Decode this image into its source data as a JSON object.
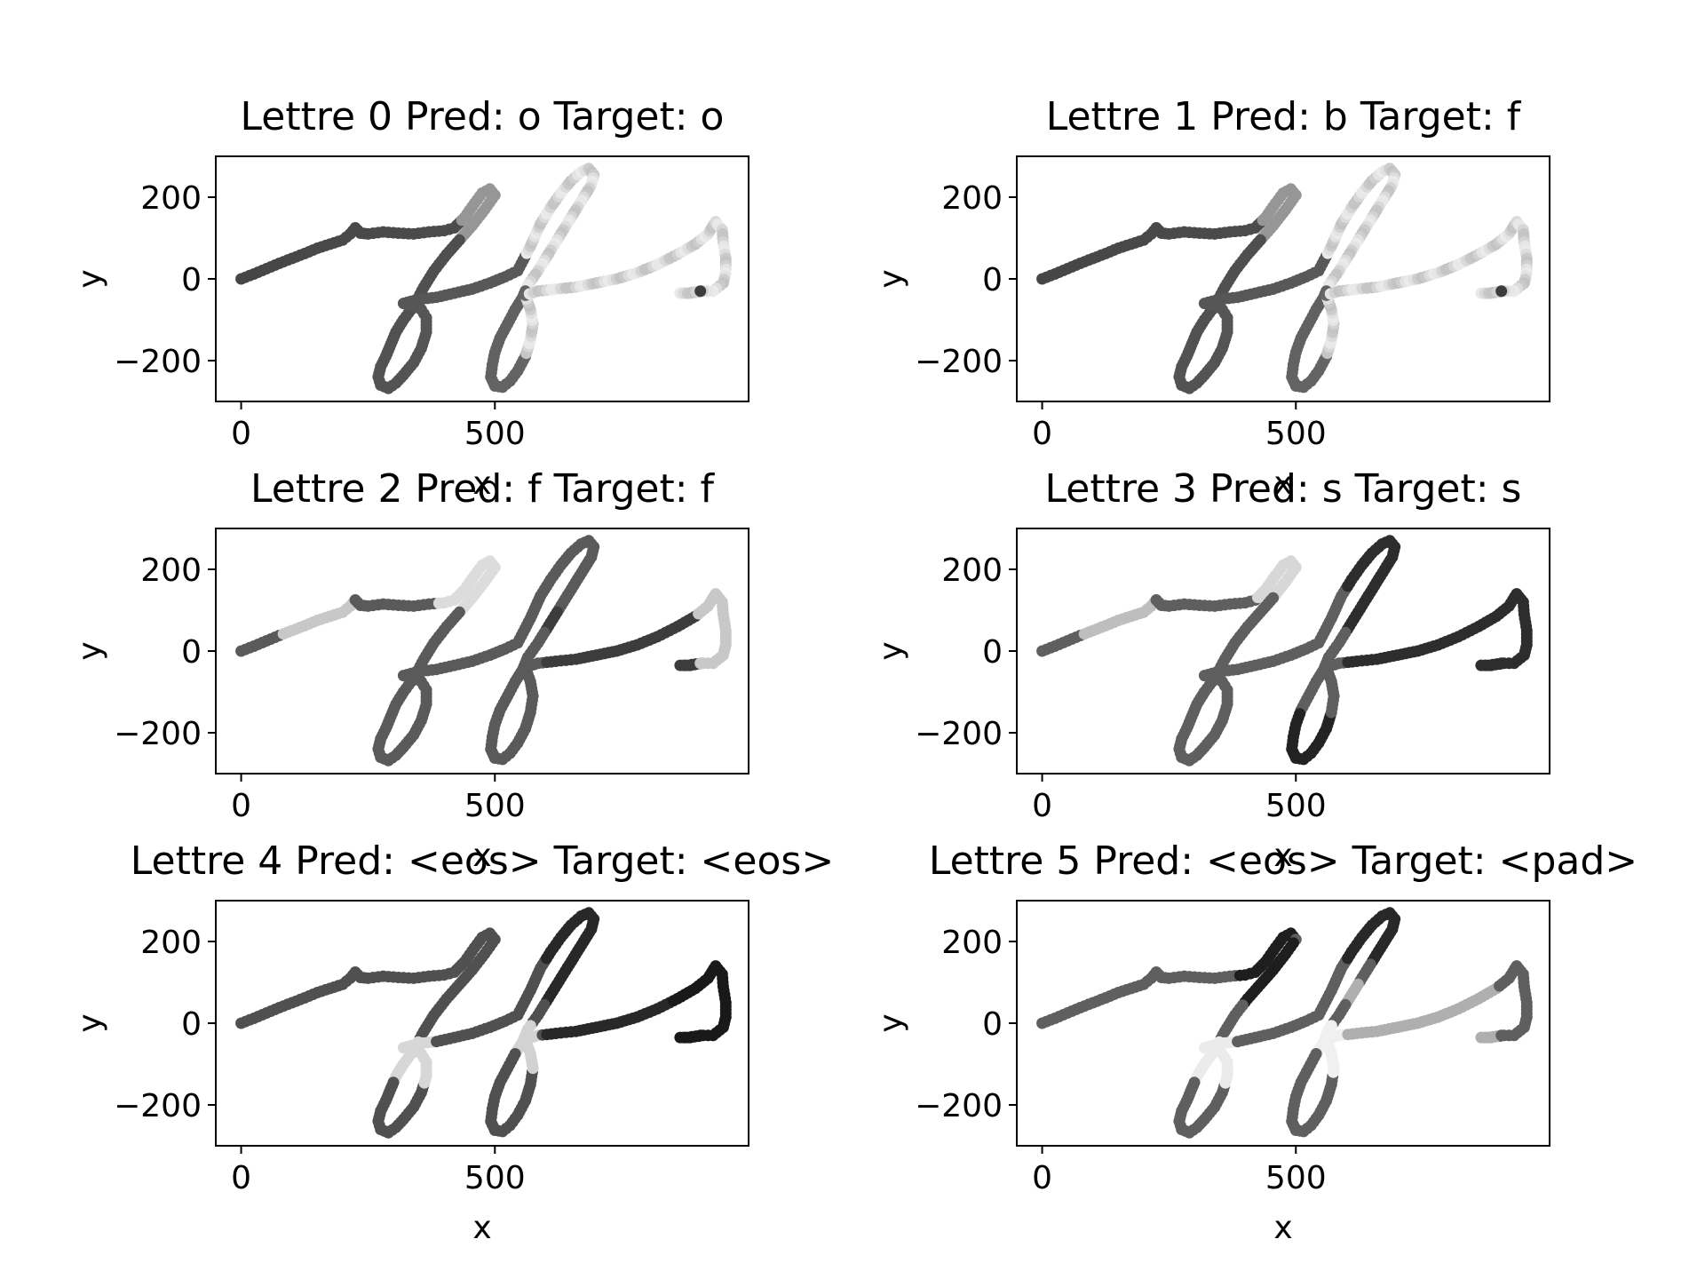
{
  "chart_data": [
    {
      "type": "scatter",
      "title": "Lettre 0 Pred: o Target: o",
      "xlabel": "x",
      "ylabel": "y",
      "xlim": [
        -50,
        1000
      ],
      "ylim": [
        -300,
        300
      ],
      "xticks": [
        "0",
        "500"
      ],
      "yticks": [
        "200",
        "0",
        "−200"
      ],
      "grid": false,
      "colormap": "grayscale",
      "shading_region": "end"
    },
    {
      "type": "scatter",
      "title": "Lettre 1 Pred: b Target: f",
      "xlabel": "x",
      "ylabel": "y",
      "xlim": [
        -50,
        1000
      ],
      "ylim": [
        -300,
        300
      ],
      "xticks": [
        "0",
        "500"
      ],
      "yticks": [
        "200",
        "0",
        "−200"
      ],
      "grid": false,
      "colormap": "grayscale",
      "shading_region": "end"
    },
    {
      "type": "scatter",
      "title": "Lettre 2 Pred: f Target: f",
      "xlabel": "x",
      "ylabel": "y",
      "xlim": [
        -50,
        1000
      ],
      "ylim": [
        -300,
        300
      ],
      "xticks": [
        "0",
        "500"
      ],
      "yticks": [
        "200",
        "0",
        "−200"
      ],
      "grid": false,
      "colormap": "grayscale",
      "shading_region": "first-f"
    },
    {
      "type": "scatter",
      "title": "Lettre 3 Pred: s Target: s",
      "xlabel": "x",
      "ylabel": "y",
      "xlim": [
        -50,
        1000
      ],
      "ylim": [
        -300,
        300
      ],
      "xticks": [
        "0",
        "500"
      ],
      "yticks": [
        "200",
        "0",
        "−200"
      ],
      "grid": false,
      "colormap": "grayscale",
      "shading_region": "second-f"
    },
    {
      "type": "scatter",
      "title": "Lettre 4 Pred: <eos> Target: <eos>",
      "xlabel": "x",
      "ylabel": "y",
      "xlim": [
        -50,
        1000
      ],
      "ylim": [
        -300,
        300
      ],
      "xticks": [
        "0",
        "500"
      ],
      "yticks": [
        "200",
        "0",
        "−200"
      ],
      "grid": false,
      "colormap": "grayscale",
      "shading_region": "loops"
    },
    {
      "type": "scatter",
      "title": "Lettre 5 Pred: <eos> Target: <pad>",
      "xlabel": "x",
      "ylabel": "y",
      "xlim": [
        -50,
        1000
      ],
      "ylim": [
        -300,
        300
      ],
      "xticks": [
        "0",
        "500"
      ],
      "yticks": [
        "200",
        "0",
        "−200"
      ],
      "grid": false,
      "colormap": "grayscale",
      "shading_region": "loops-light"
    }
  ],
  "trajectory": [
    [
      0,
      0
    ],
    [
      25,
      12
    ],
    [
      50,
      25
    ],
    [
      75,
      38
    ],
    [
      100,
      50
    ],
    [
      125,
      62
    ],
    [
      150,
      75
    ],
    [
      175,
      85
    ],
    [
      200,
      95
    ],
    [
      215,
      110
    ],
    [
      225,
      125
    ],
    [
      235,
      112
    ],
    [
      250,
      110
    ],
    [
      280,
      115
    ],
    [
      310,
      112
    ],
    [
      340,
      110
    ],
    [
      370,
      115
    ],
    [
      400,
      118
    ],
    [
      420,
      125
    ],
    [
      440,
      150
    ],
    [
      460,
      185
    ],
    [
      475,
      210
    ],
    [
      490,
      220
    ],
    [
      500,
      205
    ],
    [
      480,
      170
    ],
    [
      455,
      130
    ],
    [
      430,
      95
    ],
    [
      405,
      60
    ],
    [
      380,
      20
    ],
    [
      360,
      -20
    ],
    [
      345,
      -55
    ],
    [
      335,
      -75
    ],
    [
      320,
      -100
    ],
    [
      305,
      -130
    ],
    [
      295,
      -160
    ],
    [
      285,
      -190
    ],
    [
      275,
      -215
    ],
    [
      270,
      -240
    ],
    [
      275,
      -260
    ],
    [
      290,
      -268
    ],
    [
      305,
      -255
    ],
    [
      320,
      -235
    ],
    [
      340,
      -205
    ],
    [
      355,
      -170
    ],
    [
      365,
      -130
    ],
    [
      365,
      -95
    ],
    [
      355,
      -75
    ],
    [
      340,
      -65
    ],
    [
      320,
      -60
    ],
    [
      350,
      -50
    ],
    [
      385,
      -45
    ],
    [
      420,
      -35
    ],
    [
      455,
      -25
    ],
    [
      490,
      -10
    ],
    [
      520,
      5
    ],
    [
      545,
      20
    ],
    [
      570,
      80
    ],
    [
      590,
      135
    ],
    [
      610,
      175
    ],
    [
      630,
      210
    ],
    [
      650,
      240
    ],
    [
      670,
      262
    ],
    [
      685,
      270
    ],
    [
      695,
      255
    ],
    [
      690,
      230
    ],
    [
      675,
      200
    ],
    [
      655,
      160
    ],
    [
      635,
      120
    ],
    [
      610,
      70
    ],
    [
      585,
      20
    ],
    [
      565,
      -15
    ],
    [
      555,
      -45
    ],
    [
      540,
      -75
    ],
    [
      525,
      -110
    ],
    [
      510,
      -145
    ],
    [
      500,
      -180
    ],
    [
      495,
      -210
    ],
    [
      492,
      -240
    ],
    [
      500,
      -262
    ],
    [
      515,
      -265
    ],
    [
      530,
      -250
    ],
    [
      545,
      -225
    ],
    [
      560,
      -190
    ],
    [
      570,
      -150
    ],
    [
      575,
      -110
    ],
    [
      570,
      -75
    ],
    [
      560,
      -40
    ],
    [
      585,
      -30
    ],
    [
      620,
      -25
    ],
    [
      660,
      -20
    ],
    [
      700,
      -10
    ],
    [
      740,
      0
    ],
    [
      780,
      15
    ],
    [
      820,
      35
    ],
    [
      860,
      60
    ],
    [
      895,
      85
    ],
    [
      920,
      110
    ],
    [
      935,
      140
    ],
    [
      948,
      120
    ],
    [
      950,
      90
    ],
    [
      955,
      50
    ],
    [
      955,
      15
    ],
    [
      950,
      -10
    ],
    [
      930,
      -30
    ],
    [
      910,
      -30
    ],
    [
      885,
      -35
    ],
    [
      865,
      -35
    ],
    [
      880,
      -35
    ],
    [
      905,
      -30
    ]
  ]
}
